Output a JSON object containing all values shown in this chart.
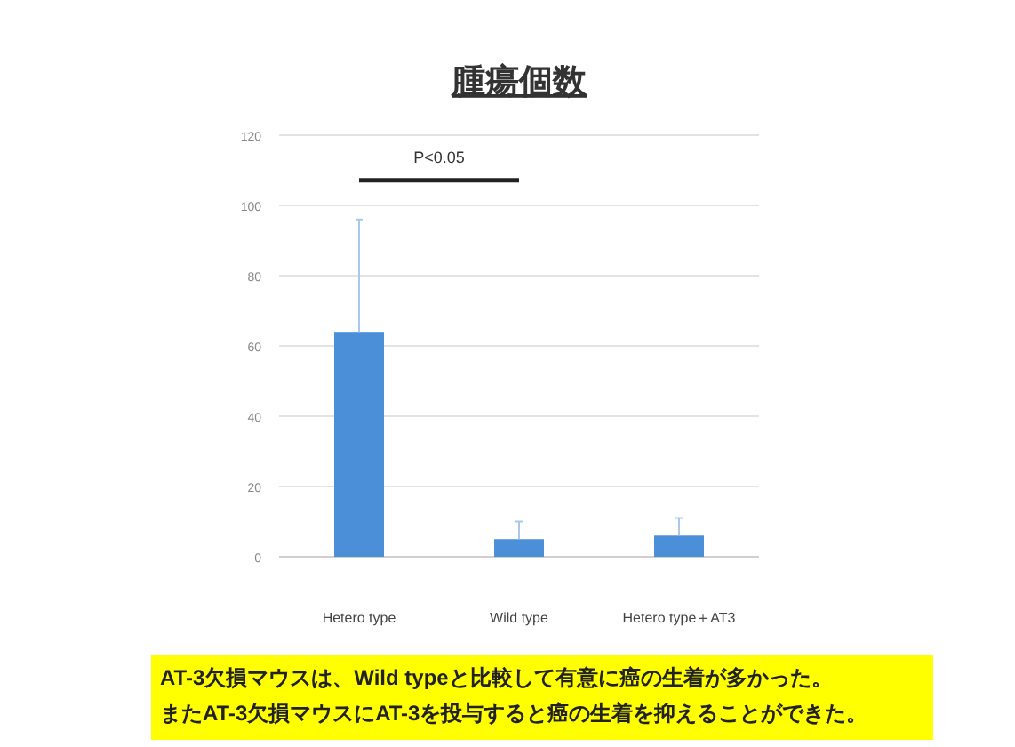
{
  "chart_data": {
    "type": "bar",
    "title": "腫瘍個数",
    "categories": [
      "Hetero type",
      "Wild type",
      "Hetero type＋AT3"
    ],
    "values": [
      64,
      5,
      6
    ],
    "errors": [
      [
        64,
        96
      ],
      [
        5,
        10
      ],
      [
        6,
        11
      ]
    ],
    "color": "#4a8fd8",
    "ylim": [
      0,
      120
    ],
    "yticks": [
      0,
      20,
      40,
      60,
      80,
      100,
      120
    ],
    "grid": "y",
    "annotations": [
      "P<0.05",
      "AT-3欠損マウスは、Wild typeと比較して有意に癌の生着が多かった。",
      "またAT-3欠損マウスにAT-3を投与すると癌の生着を抑えることができた。"
    ]
  }
}
